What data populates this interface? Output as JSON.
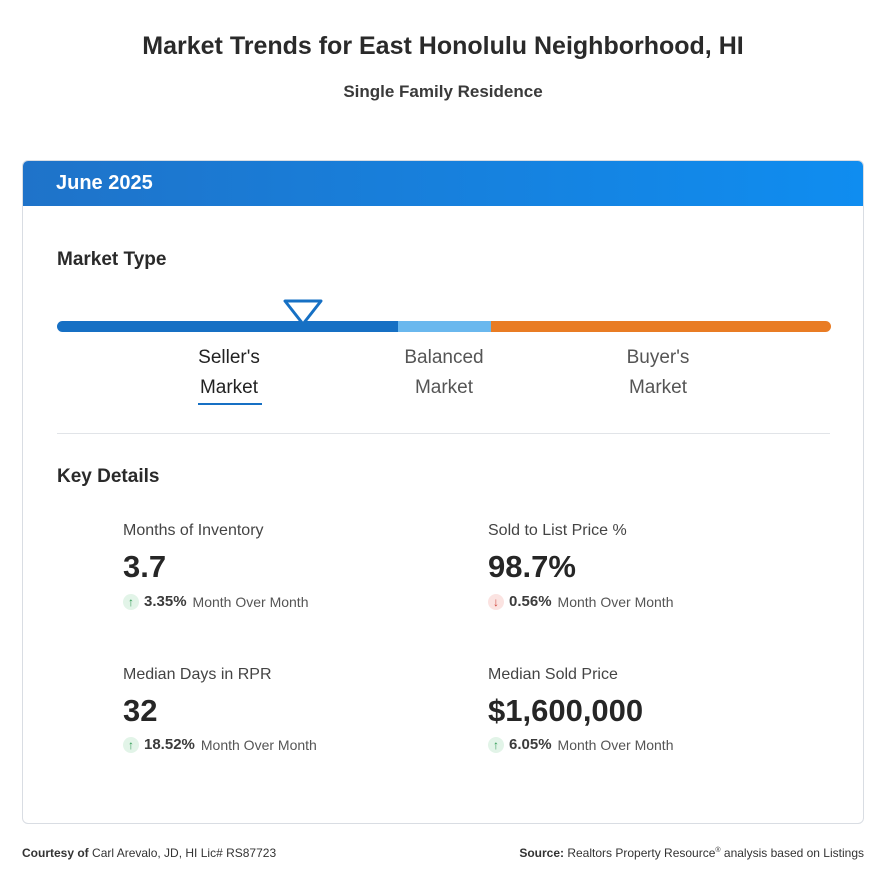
{
  "header": {
    "title": "Market Trends for East Honolulu Neighborhood, HI",
    "subtitle": "Single Family Residence"
  },
  "card": {
    "period": "June 2025",
    "market_type": {
      "heading": "Market Type",
      "segments": [
        {
          "line1": "Seller's",
          "line2": "Market",
          "active": true
        },
        {
          "line1": "Balanced",
          "line2": "Market",
          "active": false
        },
        {
          "line1": "Buyer's",
          "line2": "Market",
          "active": false
        }
      ],
      "colors": {
        "seller": "#1670c4",
        "balanced": "#6ab8ee",
        "buyer": "#e97c24"
      }
    },
    "key_details": {
      "heading": "Key Details",
      "stats": [
        {
          "label": "Months of Inventory",
          "value": "3.7",
          "direction": "up",
          "change": "3.35%",
          "period": "Month Over Month"
        },
        {
          "label": "Sold to List Price %",
          "value": "98.7%",
          "direction": "down",
          "change": "0.56%",
          "period": "Month Over Month"
        },
        {
          "label": "Median Days in RPR",
          "value": "32",
          "direction": "up",
          "change": "18.52%",
          "period": "Month Over Month"
        },
        {
          "label": "Median Sold Price",
          "value": "$1,600,000",
          "direction": "up",
          "change": "6.05%",
          "period": "Month Over Month"
        }
      ]
    }
  },
  "footer": {
    "courtesy_label": "Courtesy of",
    "courtesy_text": "Carl Arevalo, JD, HI Lic# RS87723",
    "source_label": "Source:",
    "source_text_1": "Realtors Property Resource",
    "source_reg": "®",
    "source_text_2": " analysis based on Listings"
  },
  "icons": {
    "up": "arrow-up-icon",
    "down": "arrow-down-icon",
    "marker": "triangle-marker-icon"
  }
}
